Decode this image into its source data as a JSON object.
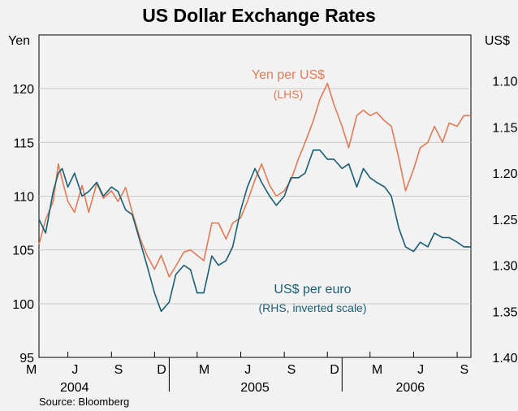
{
  "chart_data": {
    "type": "line",
    "title": "US Dollar Exchange Rates",
    "source": "Source: Bloomberg",
    "left_axis": {
      "unit": "Yen",
      "ylim": [
        95,
        125
      ],
      "ticks": [
        95,
        100,
        105,
        110,
        115,
        120
      ]
    },
    "right_axis": {
      "unit": "US$",
      "ylim": [
        1.05,
        1.4
      ],
      "inverted": true,
      "ticks": [
        "1.10",
        "1.15",
        "1.20",
        "1.25",
        "1.30",
        "1.35",
        "1.40"
      ]
    },
    "x_axis": {
      "range": [
        "2004-04-01",
        "2006-09-30"
      ],
      "month_labels": [
        "M",
        "J",
        "S",
        "D",
        "M",
        "J",
        "S",
        "D",
        "M",
        "J",
        "S"
      ],
      "year_labels": [
        "2004",
        "2005",
        "2006"
      ]
    },
    "grid": true,
    "colors": {
      "yen": "#e07b55",
      "euro": "#1a5e73",
      "background": "#f2f2f2",
      "grid": "#c8c8c8"
    },
    "series": [
      {
        "name": "Yen per US$",
        "note": "(LHS)",
        "axis": "left",
        "points": [
          [
            "2004-04-01",
            105.5
          ],
          [
            "2004-04-15",
            107.8
          ],
          [
            "2004-05-01",
            109.5
          ],
          [
            "2004-05-12",
            113.0
          ],
          [
            "2004-05-20",
            111.5
          ],
          [
            "2004-06-01",
            109.5
          ],
          [
            "2004-06-15",
            108.5
          ],
          [
            "2004-07-01",
            111.0
          ],
          [
            "2004-07-15",
            108.5
          ],
          [
            "2004-08-01",
            111.2
          ],
          [
            "2004-08-15",
            109.8
          ],
          [
            "2004-09-01",
            110.5
          ],
          [
            "2004-09-15",
            109.5
          ],
          [
            "2004-10-01",
            110.8
          ],
          [
            "2004-10-15",
            108.5
          ],
          [
            "2004-11-01",
            106.0
          ],
          [
            "2004-11-15",
            104.5
          ],
          [
            "2004-12-01",
            103.2
          ],
          [
            "2004-12-15",
            104.5
          ],
          [
            "2005-01-01",
            102.5
          ],
          [
            "2005-01-15",
            103.5
          ],
          [
            "2005-02-01",
            104.8
          ],
          [
            "2005-02-15",
            105.0
          ],
          [
            "2005-03-01",
            104.5
          ],
          [
            "2005-03-15",
            104.0
          ],
          [
            "2005-04-01",
            107.5
          ],
          [
            "2005-04-15",
            107.5
          ],
          [
            "2005-05-01",
            106.0
          ],
          [
            "2005-05-15",
            107.5
          ],
          [
            "2005-06-01",
            108.0
          ],
          [
            "2005-06-15",
            109.5
          ],
          [
            "2005-07-01",
            111.5
          ],
          [
            "2005-07-15",
            113.0
          ],
          [
            "2005-08-01",
            111.0
          ],
          [
            "2005-08-15",
            110.0
          ],
          [
            "2005-09-01",
            110.5
          ],
          [
            "2005-09-15",
            111.5
          ],
          [
            "2005-10-01",
            113.5
          ],
          [
            "2005-10-15",
            115.0
          ],
          [
            "2005-11-01",
            117.0
          ],
          [
            "2005-11-15",
            119.0
          ],
          [
            "2005-12-01",
            120.5
          ],
          [
            "2005-12-15",
            118.5
          ],
          [
            "2006-01-01",
            116.5
          ],
          [
            "2006-01-15",
            114.5
          ],
          [
            "2006-02-01",
            117.5
          ],
          [
            "2006-02-15",
            118.0
          ],
          [
            "2006-03-01",
            117.5
          ],
          [
            "2006-03-15",
            117.8
          ],
          [
            "2006-04-01",
            117.0
          ],
          [
            "2006-04-15",
            116.5
          ],
          [
            "2006-05-01",
            113.5
          ],
          [
            "2006-05-15",
            110.5
          ],
          [
            "2006-06-01",
            112.5
          ],
          [
            "2006-06-15",
            114.5
          ],
          [
            "2006-07-01",
            115.0
          ],
          [
            "2006-07-15",
            116.5
          ],
          [
            "2006-08-01",
            115.0
          ],
          [
            "2006-08-15",
            116.8
          ],
          [
            "2006-09-01",
            116.5
          ],
          [
            "2006-09-15",
            117.5
          ],
          [
            "2006-09-30",
            117.5
          ]
        ]
      },
      {
        "name": "US$ per euro",
        "note": "(RHS, inverted scale)",
        "axis": "right",
        "points": [
          [
            "2004-04-01",
            1.25
          ],
          [
            "2004-04-15",
            1.265
          ],
          [
            "2004-05-01",
            1.22
          ],
          [
            "2004-05-12",
            1.2
          ],
          [
            "2004-05-20",
            1.195
          ],
          [
            "2004-06-01",
            1.215
          ],
          [
            "2004-06-15",
            1.2
          ],
          [
            "2004-07-01",
            1.225
          ],
          [
            "2004-07-15",
            1.22
          ],
          [
            "2004-08-01",
            1.21
          ],
          [
            "2004-08-15",
            1.225
          ],
          [
            "2004-09-01",
            1.215
          ],
          [
            "2004-09-15",
            1.22
          ],
          [
            "2004-10-01",
            1.24
          ],
          [
            "2004-10-15",
            1.245
          ],
          [
            "2004-11-01",
            1.275
          ],
          [
            "2004-11-15",
            1.3
          ],
          [
            "2004-12-01",
            1.33
          ],
          [
            "2004-12-15",
            1.35
          ],
          [
            "2005-01-01",
            1.34
          ],
          [
            "2005-01-15",
            1.31
          ],
          [
            "2005-02-01",
            1.3
          ],
          [
            "2005-02-15",
            1.305
          ],
          [
            "2005-03-01",
            1.33
          ],
          [
            "2005-03-15",
            1.33
          ],
          [
            "2005-04-01",
            1.29
          ],
          [
            "2005-04-15",
            1.3
          ],
          [
            "2005-05-01",
            1.295
          ],
          [
            "2005-05-15",
            1.28
          ],
          [
            "2005-06-01",
            1.24
          ],
          [
            "2005-06-15",
            1.215
          ],
          [
            "2005-07-01",
            1.195
          ],
          [
            "2005-07-15",
            1.21
          ],
          [
            "2005-08-01",
            1.225
          ],
          [
            "2005-08-15",
            1.235
          ],
          [
            "2005-09-01",
            1.225
          ],
          [
            "2005-09-15",
            1.205
          ],
          [
            "2005-10-01",
            1.205
          ],
          [
            "2005-10-15",
            1.2
          ],
          [
            "2005-11-01",
            1.175
          ],
          [
            "2005-11-15",
            1.175
          ],
          [
            "2005-12-01",
            1.185
          ],
          [
            "2005-12-15",
            1.185
          ],
          [
            "2006-01-01",
            1.195
          ],
          [
            "2006-01-15",
            1.19
          ],
          [
            "2006-02-01",
            1.215
          ],
          [
            "2006-02-15",
            1.195
          ],
          [
            "2006-03-01",
            1.205
          ],
          [
            "2006-03-15",
            1.21
          ],
          [
            "2006-04-01",
            1.215
          ],
          [
            "2006-04-15",
            1.225
          ],
          [
            "2006-05-01",
            1.26
          ],
          [
            "2006-05-15",
            1.28
          ],
          [
            "2006-06-01",
            1.285
          ],
          [
            "2006-06-15",
            1.275
          ],
          [
            "2006-07-01",
            1.28
          ],
          [
            "2006-07-15",
            1.265
          ],
          [
            "2006-08-01",
            1.27
          ],
          [
            "2006-08-15",
            1.27
          ],
          [
            "2006-09-01",
            1.275
          ],
          [
            "2006-09-15",
            1.28
          ],
          [
            "2006-09-30",
            1.28
          ]
        ]
      }
    ]
  }
}
